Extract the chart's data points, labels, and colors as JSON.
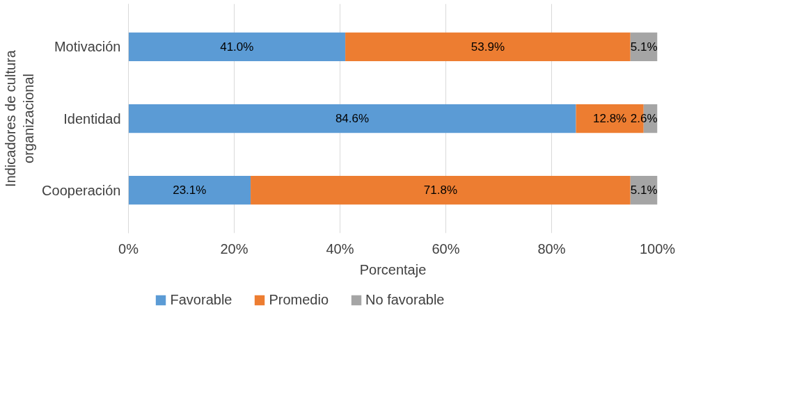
{
  "chart_data": {
    "type": "bar",
    "orientation": "horizontal",
    "stacked": true,
    "xlabel": "Porcentaje",
    "ylabel": "Indicadores de cultura organizacional",
    "categories": [
      "Motivación",
      "Identidad",
      "Cooperación"
    ],
    "series": [
      {
        "name": "Favorable",
        "color": "#5b9bd5",
        "values": [
          41.0,
          84.6,
          23.1
        ],
        "value_labels": [
          "41.0%",
          "84.6%",
          "23.1%"
        ]
      },
      {
        "name": "Promedio",
        "color": "#ed7d31",
        "values": [
          53.9,
          12.8,
          71.8
        ],
        "value_labels": [
          "53.9%",
          "12.8%",
          "71.8%"
        ]
      },
      {
        "name": "No favorable",
        "color": "#a5a5a5",
        "values": [
          5.1,
          2.6,
          5.1
        ],
        "value_labels": [
          "5.1%",
          "2.6%",
          "5.1%"
        ]
      }
    ],
    "xlim": [
      0,
      100
    ],
    "xticks": [
      {
        "value": 0,
        "label": "0%"
      },
      {
        "value": 20,
        "label": "20%"
      },
      {
        "value": 40,
        "label": "40%"
      },
      {
        "value": 60,
        "label": "60%"
      },
      {
        "value": 80,
        "label": "80%"
      },
      {
        "value": 100,
        "label": "100%"
      }
    ],
    "grid": "x",
    "legend": "bottom"
  }
}
